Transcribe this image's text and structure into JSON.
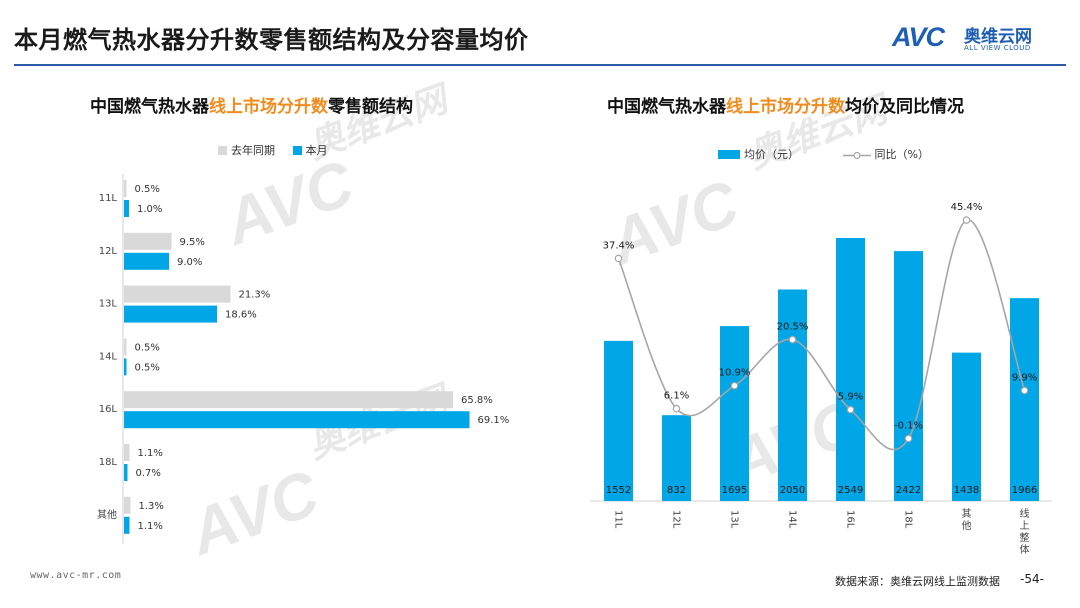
{
  "header": {
    "title": "本月燃气热水器分升数零售额结构及分容量均价"
  },
  "logo": {
    "mark": "AVC",
    "cn": "奥维云网",
    "en": "ALL VIEW CLOUD"
  },
  "watermark": {
    "brand": "AVC",
    "cn": "奥维云网",
    "en": "ALL VIEW CLOUD"
  },
  "left_chart": {
    "title_pre": "中国燃气热水器",
    "title_hl": "线上市场分升数",
    "title_post": "零售额结构",
    "legend": [
      "去年同期",
      "本月"
    ]
  },
  "right_chart": {
    "title_pre": "中国燃气热水器",
    "title_hl": "线上市场分升数",
    "title_post": "均价及同比情况",
    "legend": [
      "均价（元）",
      "同比（%）"
    ]
  },
  "colors": {
    "last_year": "#d9d9d9",
    "this_month": "#00a6e6",
    "line": "#a6a6a6",
    "highlight": "#f08c1e",
    "brand": "#1f5fb3"
  },
  "chart_data": [
    {
      "type": "bar",
      "orientation": "horizontal",
      "categories": [
        "11L",
        "12L",
        "13L",
        "14L",
        "16L",
        "18L",
        "其他"
      ],
      "series": [
        {
          "name": "去年同期",
          "values": [
            0.5,
            9.5,
            21.3,
            0.5,
            65.8,
            1.1,
            1.3
          ],
          "labels": [
            "0.5%",
            "9.5%",
            "21.3%",
            "0.5%",
            "65.8%",
            "1.1%",
            "1.3%"
          ]
        },
        {
          "name": "本月",
          "values": [
            1.0,
            9.0,
            18.6,
            0.5,
            69.1,
            0.7,
            1.1
          ],
          "labels": [
            "1.0%",
            "9.0%",
            "18.6%",
            "0.5%",
            "69.1%",
            "0.7%",
            "1.1%"
          ]
        }
      ],
      "xlim": [
        0,
        100
      ]
    },
    {
      "type": "bar",
      "categories": [
        "11L",
        "12L",
        "13L",
        "14L",
        "16L",
        "18L",
        "其他",
        "线上整体"
      ],
      "series": [
        {
          "name": "均价（元）",
          "type": "bar",
          "values": [
            1552,
            832,
            1695,
            2050,
            2549,
            2422,
            1438,
            1966
          ]
        },
        {
          "name": "同比（%）",
          "type": "line",
          "values": [
            37.4,
            6.1,
            10.9,
            20.5,
            5.9,
            -0.1,
            45.4,
            9.9
          ],
          "labels": [
            "37.4%",
            "6.1%",
            "10.9%",
            "20.5%",
            "5.9%",
            "-0.1%",
            "45.4%",
            "9.9%"
          ]
        }
      ],
      "ylim": [
        0,
        2700
      ],
      "y2lim": [
        -10,
        55
      ]
    }
  ],
  "footer": {
    "url": "www.avc-mr.com",
    "source": "数据来源：奥维云网线上监测数据",
    "page": "-54-"
  }
}
